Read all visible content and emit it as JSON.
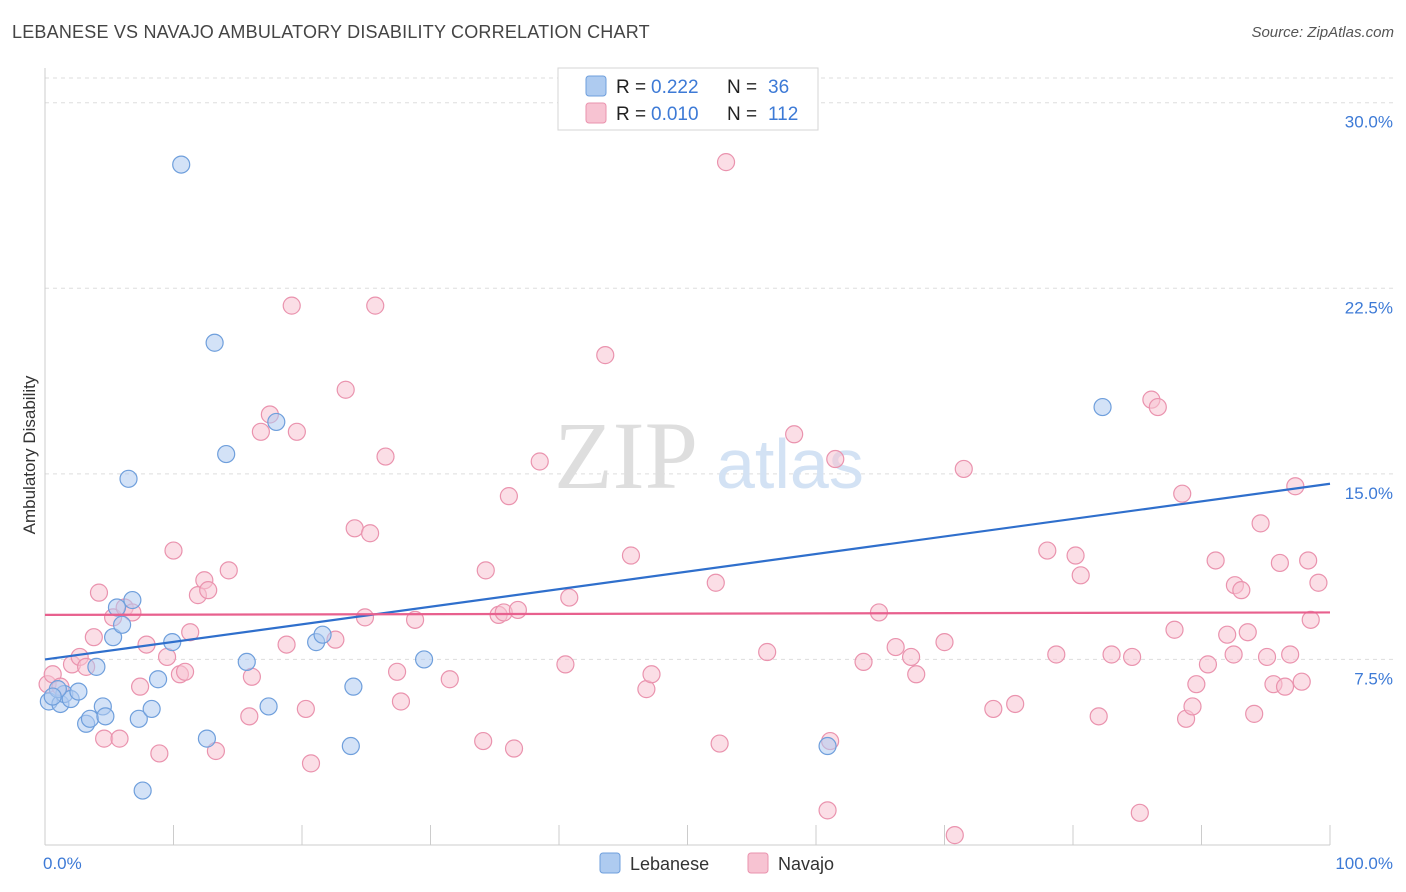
{
  "title": "LEBANESE VS NAVAJO AMBULATORY DISABILITY CORRELATION CHART",
  "source": "Source: ZipAtlas.com",
  "watermark": {
    "zip": "ZIP",
    "atlas": "atlas"
  },
  "colors": {
    "lebanese_fill": "#aecbf0",
    "lebanese_stroke": "#6f9fdc",
    "lebanese_line": "#2f6fcc",
    "navajo_fill": "#f7c3d2",
    "navajo_stroke": "#ea93ae",
    "navajo_line": "#e8608e",
    "axis_text": "#3d7ad6",
    "grid": "#dddddd"
  },
  "chart_data": {
    "type": "scatter",
    "ylabel": "Ambulatory Disability",
    "xlim": [
      0,
      100
    ],
    "ylim": [
      0,
      31
    ],
    "y_ticks": [
      {
        "value": 7.5,
        "label": "7.5%"
      },
      {
        "value": 15.0,
        "label": "15.0%"
      },
      {
        "value": 22.5,
        "label": "22.5%"
      },
      {
        "value": 30.0,
        "label": "30.0%"
      }
    ],
    "x_tick_labels": {
      "min": "0.0%",
      "max": "100.0%"
    },
    "legend_stats": [
      {
        "series": "Lebanese",
        "r_label": "R =",
        "r_value": "0.222",
        "n_label": "N =",
        "n_value": "36"
      },
      {
        "series": "Navajo",
        "r_label": "R =",
        "r_value": "0.010",
        "n_label": "N =",
        "n_value": "112"
      }
    ],
    "legend_bottom": [
      "Lebanese",
      "Navajo"
    ],
    "series": [
      {
        "name": "Lebanese",
        "trend": {
          "x": [
            0,
            100
          ],
          "y": [
            7.5,
            14.6
          ]
        },
        "points": [
          [
            0.3,
            5.8
          ],
          [
            1.2,
            5.7
          ],
          [
            1.5,
            6.1
          ],
          [
            2.0,
            5.9
          ],
          [
            2.6,
            6.2
          ],
          [
            3.2,
            4.9
          ],
          [
            3.5,
            5.1
          ],
          [
            4.0,
            7.2
          ],
          [
            4.5,
            5.6
          ],
          [
            4.7,
            5.2
          ],
          [
            5.3,
            8.4
          ],
          [
            5.6,
            9.6
          ],
          [
            6.0,
            8.9
          ],
          [
            6.5,
            14.8
          ],
          [
            6.8,
            9.9
          ],
          [
            7.3,
            5.1
          ],
          [
            7.6,
            2.2
          ],
          [
            8.3,
            5.5
          ],
          [
            8.8,
            6.7
          ],
          [
            9.9,
            8.2
          ],
          [
            10.6,
            27.5
          ],
          [
            12.6,
            4.3
          ],
          [
            13.2,
            20.3
          ],
          [
            14.1,
            15.8
          ],
          [
            15.7,
            7.4
          ],
          [
            17.4,
            5.6
          ],
          [
            18.0,
            17.1
          ],
          [
            21.1,
            8.2
          ],
          [
            21.6,
            8.5
          ],
          [
            23.8,
            4.0
          ],
          [
            24.0,
            6.4
          ],
          [
            29.5,
            7.5
          ],
          [
            60.9,
            4.0
          ],
          [
            82.3,
            17.7
          ],
          [
            1.0,
            6.3
          ],
          [
            0.6,
            6.0
          ]
        ]
      },
      {
        "name": "Navajo",
        "trend": {
          "x": [
            0,
            100
          ],
          "y": [
            9.3,
            9.4
          ]
        },
        "points": [
          [
            0.2,
            6.5
          ],
          [
            0.6,
            6.9
          ],
          [
            1.2,
            6.4
          ],
          [
            2.1,
            7.3
          ],
          [
            2.7,
            7.6
          ],
          [
            3.2,
            7.2
          ],
          [
            3.8,
            8.4
          ],
          [
            4.2,
            10.2
          ],
          [
            4.6,
            4.3
          ],
          [
            5.3,
            9.2
          ],
          [
            5.8,
            4.3
          ],
          [
            6.2,
            9.6
          ],
          [
            6.8,
            9.4
          ],
          [
            7.4,
            6.4
          ],
          [
            7.9,
            8.1
          ],
          [
            8.9,
            3.7
          ],
          [
            9.5,
            7.6
          ],
          [
            10.0,
            11.9
          ],
          [
            10.5,
            6.9
          ],
          [
            10.9,
            7.0
          ],
          [
            11.3,
            8.6
          ],
          [
            11.9,
            10.1
          ],
          [
            12.4,
            10.7
          ],
          [
            12.7,
            10.3
          ],
          [
            13.3,
            3.8
          ],
          [
            14.3,
            11.1
          ],
          [
            15.9,
            5.2
          ],
          [
            16.1,
            6.8
          ],
          [
            16.8,
            16.7
          ],
          [
            17.5,
            17.4
          ],
          [
            18.8,
            8.1
          ],
          [
            19.2,
            21.8
          ],
          [
            19.6,
            16.7
          ],
          [
            20.3,
            5.5
          ],
          [
            20.7,
            3.3
          ],
          [
            22.6,
            8.3
          ],
          [
            23.4,
            18.4
          ],
          [
            24.1,
            12.8
          ],
          [
            24.9,
            9.2
          ],
          [
            25.3,
            12.6
          ],
          [
            25.7,
            21.8
          ],
          [
            26.5,
            15.7
          ],
          [
            27.4,
            7.0
          ],
          [
            27.7,
            5.8
          ],
          [
            28.8,
            9.1
          ],
          [
            31.5,
            6.7
          ],
          [
            34.1,
            4.2
          ],
          [
            34.3,
            11.1
          ],
          [
            35.3,
            9.3
          ],
          [
            35.7,
            9.4
          ],
          [
            36.1,
            14.1
          ],
          [
            36.5,
            3.9
          ],
          [
            38.5,
            15.5
          ],
          [
            40.5,
            7.3
          ],
          [
            40.8,
            10.0
          ],
          [
            43.6,
            19.8
          ],
          [
            45.6,
            11.7
          ],
          [
            46.8,
            6.3
          ],
          [
            47.2,
            6.9
          ],
          [
            52.2,
            10.6
          ],
          [
            53.0,
            27.6
          ],
          [
            56.2,
            7.8
          ],
          [
            58.3,
            16.6
          ],
          [
            61.1,
            4.2
          ],
          [
            61.5,
            15.6
          ],
          [
            60.9,
            1.4
          ],
          [
            63.7,
            7.4
          ],
          [
            64.9,
            9.4
          ],
          [
            66.2,
            8.0
          ],
          [
            67.4,
            7.6
          ],
          [
            67.8,
            6.9
          ],
          [
            70.0,
            8.2
          ],
          [
            70.8,
            0.4
          ],
          [
            71.5,
            15.2
          ],
          [
            73.8,
            5.5
          ],
          [
            75.5,
            5.7
          ],
          [
            78.0,
            11.9
          ],
          [
            78.7,
            7.7
          ],
          [
            80.2,
            11.7
          ],
          [
            80.6,
            10.9
          ],
          [
            82.0,
            5.2
          ],
          [
            83.0,
            7.7
          ],
          [
            84.6,
            7.6
          ],
          [
            85.2,
            1.3
          ],
          [
            86.1,
            18.0
          ],
          [
            86.6,
            17.7
          ],
          [
            87.9,
            8.7
          ],
          [
            88.5,
            14.2
          ],
          [
            88.8,
            5.1
          ],
          [
            89.3,
            5.6
          ],
          [
            89.6,
            6.5
          ],
          [
            90.5,
            7.3
          ],
          [
            91.1,
            11.5
          ],
          [
            92.0,
            8.5
          ],
          [
            92.5,
            7.7
          ],
          [
            92.6,
            10.5
          ],
          [
            93.1,
            10.3
          ],
          [
            93.6,
            8.6
          ],
          [
            94.1,
            5.3
          ],
          [
            94.6,
            13.0
          ],
          [
            95.1,
            7.6
          ],
          [
            95.6,
            6.5
          ],
          [
            96.1,
            11.4
          ],
          [
            96.5,
            6.4
          ],
          [
            96.9,
            7.7
          ],
          [
            97.3,
            14.5
          ],
          [
            97.8,
            6.6
          ],
          [
            98.3,
            11.5
          ],
          [
            98.5,
            9.1
          ],
          [
            99.1,
            10.6
          ],
          [
            36.8,
            9.5
          ],
          [
            52.5,
            4.1
          ]
        ]
      }
    ]
  }
}
